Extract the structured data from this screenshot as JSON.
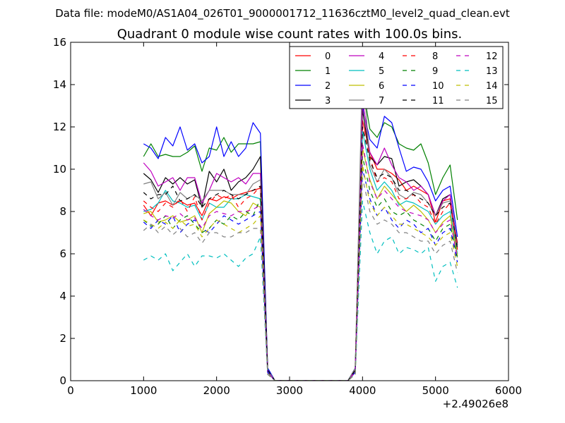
{
  "chart_data": {
    "type": "line",
    "suptitle": "Data file: modeM0/AS1A04_026T01_9000001712_11636cztM0_level2_quad_clean.evt",
    "title": "Quadrant 0 module wise count rates with 100.0s bins.",
    "xlabel": "",
    "ylabel": "",
    "x_offset_label": "+2.49026e8",
    "xlim": [
      0,
      6000
    ],
    "ylim": [
      0,
      16
    ],
    "xticks": [
      0,
      1000,
      2000,
      3000,
      4000,
      5000,
      6000
    ],
    "yticks": [
      0,
      2,
      4,
      6,
      8,
      10,
      12,
      14,
      16
    ],
    "grid": false,
    "legend_position": "top-right",
    "x": [
      1000,
      1100,
      1200,
      1300,
      1400,
      1500,
      1600,
      1700,
      1800,
      1900,
      2000,
      2100,
      2200,
      2300,
      2400,
      2500,
      2600,
      2700,
      2800,
      2900,
      3000,
      3100,
      3200,
      3300,
      3400,
      3500,
      3600,
      3700,
      3800,
      3900,
      4000,
      4100,
      4200,
      4300,
      4400,
      4500,
      4600,
      4700,
      4800,
      4900,
      5000,
      5100,
      5200,
      5300
    ],
    "series": [
      {
        "name": "0",
        "color": "#ff0000",
        "dash": "solid",
        "values": [
          8.3,
          7.8,
          8.4,
          8.5,
          8.3,
          8.5,
          8.3,
          8.4,
          7.8,
          8.6,
          8.5,
          8.7,
          8.6,
          8.8,
          8.9,
          9.0,
          9.1,
          0.5,
          0,
          0,
          0,
          0,
          0,
          0,
          0,
          0,
          0,
          0,
          0,
          0.5,
          12.3,
          10.8,
          10.0,
          10.0,
          9.8,
          9.5,
          9.0,
          9.2,
          9.0,
          8.8,
          7.5,
          8.5,
          8.6,
          6.5
        ]
      },
      {
        "name": "1",
        "color": "#008000",
        "dash": "solid",
        "values": [
          10.6,
          11.2,
          10.6,
          10.7,
          10.6,
          10.6,
          10.8,
          11.1,
          9.9,
          11.0,
          10.9,
          11.5,
          10.8,
          11.2,
          11.2,
          11.2,
          11.3,
          0.6,
          0,
          0,
          0,
          0,
          0,
          0,
          0,
          0,
          0,
          0,
          0,
          0.6,
          14.0,
          11.9,
          11.5,
          12.2,
          12.0,
          11.2,
          11.0,
          10.9,
          11.2,
          10.3,
          8.8,
          9.6,
          10.2,
          7.6
        ]
      },
      {
        "name": "2",
        "color": "#0000ff",
        "dash": "solid",
        "values": [
          11.2,
          11.0,
          10.5,
          11.5,
          11.1,
          12.0,
          10.9,
          11.2,
          10.3,
          10.6,
          12.0,
          10.6,
          11.3,
          10.6,
          11.0,
          12.2,
          11.7,
          0.6,
          0,
          0,
          0,
          0,
          0,
          0,
          0,
          0,
          0,
          0,
          0,
          0.6,
          13.0,
          11.4,
          11.0,
          12.5,
          12.2,
          11.0,
          9.9,
          10.1,
          10.0,
          9.4,
          8.5,
          9.0,
          9.2,
          6.8
        ]
      },
      {
        "name": "3",
        "color": "#000000",
        "dash": "solid",
        "values": [
          9.8,
          9.5,
          8.9,
          9.6,
          9.3,
          9.6,
          9.3,
          9.5,
          8.2,
          9.9,
          9.4,
          10.0,
          9.0,
          9.4,
          9.6,
          10.0,
          10.6,
          0.5,
          0,
          0,
          0,
          0,
          0,
          0,
          0,
          0,
          0,
          0,
          0,
          0.5,
          12.8,
          10.6,
          10.2,
          10.6,
          10.5,
          9.2,
          9.4,
          9.5,
          9.2,
          8.8,
          7.8,
          8.6,
          8.8,
          6.4
        ]
      },
      {
        "name": "4",
        "color": "#bf00bf",
        "dash": "solid",
        "values": [
          10.3,
          9.9,
          9.2,
          9.4,
          9.6,
          9.0,
          9.6,
          9.6,
          8.4,
          9.0,
          9.8,
          9.6,
          9.4,
          9.6,
          9.3,
          9.8,
          9.8,
          0.5,
          0,
          0,
          0,
          0,
          0,
          0,
          0,
          0,
          0,
          0,
          0,
          0.5,
          13.3,
          10.8,
          10.2,
          11.0,
          10.2,
          9.6,
          9.4,
          9.0,
          9.2,
          8.8,
          7.8,
          8.5,
          8.8,
          6.3
        ]
      },
      {
        "name": "5",
        "color": "#00bfbf",
        "dash": "solid",
        "values": [
          8.0,
          8.1,
          8.4,
          9.0,
          8.5,
          8.4,
          8.2,
          8.3,
          7.6,
          8.4,
          8.2,
          8.2,
          8.6,
          8.6,
          8.8,
          8.7,
          8.6,
          0.4,
          0,
          0,
          0,
          0,
          0,
          0,
          0,
          0,
          0,
          0,
          0,
          0.4,
          11.8,
          10.0,
          9.0,
          9.4,
          9.0,
          8.3,
          8.5,
          8.4,
          8.2,
          8.0,
          7.4,
          7.8,
          8.0,
          6.0
        ]
      },
      {
        "name": "6",
        "color": "#bfbf00",
        "dash": "solid",
        "values": [
          7.9,
          8.0,
          7.5,
          7.6,
          7.8,
          7.5,
          7.6,
          7.8,
          7.0,
          7.9,
          8.2,
          8.5,
          8.4,
          8.0,
          7.8,
          8.4,
          8.2,
          0.4,
          0,
          0,
          0,
          0,
          0,
          0,
          0,
          0,
          0,
          0,
          0,
          0.4,
          11.0,
          9.5,
          8.6,
          9.2,
          8.8,
          8.4,
          8.0,
          8.3,
          8.0,
          7.6,
          7.0,
          7.5,
          7.8,
          5.9
        ]
      },
      {
        "name": "7",
        "color": "#808080",
        "dash": "solid",
        "values": [
          9.3,
          9.4,
          8.6,
          8.9,
          8.3,
          8.9,
          8.6,
          8.8,
          8.5,
          9.0,
          9.0,
          9.0,
          8.8,
          8.8,
          8.8,
          9.3,
          9.5,
          0.5,
          0,
          0,
          0,
          0,
          0,
          0,
          0,
          0,
          0,
          0,
          0,
          0.6,
          15.0,
          10.2,
          9.4,
          10.0,
          9.6,
          8.8,
          8.6,
          8.9,
          8.8,
          8.4,
          7.8,
          8.4,
          8.5,
          6.3
        ]
      },
      {
        "name": "8",
        "color": "#ff0000",
        "dash": "dashed",
        "values": [
          8.5,
          8.2,
          8.0,
          8.4,
          8.2,
          8.6,
          8.0,
          8.7,
          7.6,
          8.4,
          8.8,
          8.6,
          8.8,
          8.2,
          8.6,
          8.8,
          9.2,
          0.4,
          0,
          0,
          0,
          0,
          0,
          0,
          0,
          0,
          0,
          0,
          0,
          0.4,
          12.0,
          10.6,
          9.4,
          9.6,
          9.4,
          8.6,
          8.6,
          8.8,
          8.4,
          8.2,
          7.4,
          8.0,
          8.4,
          6.2
        ]
      },
      {
        "name": "9",
        "color": "#008000",
        "dash": "dashed",
        "values": [
          7.6,
          7.3,
          7.4,
          7.8,
          7.2,
          7.6,
          7.8,
          7.4,
          7.0,
          7.2,
          7.6,
          7.4,
          7.8,
          7.6,
          8.0,
          7.8,
          8.6,
          0.4,
          0,
          0,
          0,
          0,
          0,
          0,
          0,
          0,
          0,
          0,
          0,
          0.4,
          10.6,
          9.0,
          8.2,
          8.6,
          8.0,
          7.8,
          8.0,
          7.6,
          7.4,
          7.2,
          6.6,
          7.2,
          7.4,
          5.8
        ]
      },
      {
        "name": "10",
        "color": "#0000ff",
        "dash": "dashed",
        "values": [
          7.5,
          7.2,
          7.6,
          7.4,
          7.8,
          7.0,
          7.4,
          7.6,
          7.2,
          7.0,
          7.4,
          7.8,
          7.6,
          7.4,
          7.6,
          7.8,
          8.0,
          0.4,
          0,
          0,
          0,
          0,
          0,
          0,
          0,
          0,
          0,
          0,
          0,
          0.4,
          10.0,
          8.6,
          7.8,
          8.2,
          7.6,
          7.2,
          7.6,
          7.4,
          7.0,
          7.2,
          6.4,
          7.0,
          7.2,
          5.6
        ]
      },
      {
        "name": "11",
        "color": "#000000",
        "dash": "dashed",
        "values": [
          8.9,
          8.6,
          8.8,
          8.8,
          9.2,
          8.5,
          8.6,
          8.8,
          8.2,
          8.6,
          8.8,
          9.0,
          8.8,
          8.6,
          8.8,
          9.0,
          9.2,
          0.5,
          0,
          0,
          0,
          0,
          0,
          0,
          0,
          0,
          0,
          0,
          0,
          0.5,
          12.0,
          10.4,
          9.6,
          9.8,
          9.6,
          9.0,
          9.0,
          8.8,
          8.6,
          8.4,
          7.8,
          8.2,
          8.4,
          6.2
        ]
      },
      {
        "name": "12",
        "color": "#bf00bf",
        "dash": "dashed",
        "values": [
          8.1,
          7.8,
          7.6,
          7.8,
          7.7,
          7.9,
          7.6,
          7.7,
          7.2,
          7.8,
          8.0,
          7.9,
          7.8,
          8.0,
          8.0,
          8.1,
          8.3,
          0.4,
          0,
          0,
          0,
          0,
          0,
          0,
          0,
          0,
          0,
          0,
          0,
          0.4,
          11.2,
          9.4,
          8.6,
          9.0,
          8.6,
          8.2,
          8.0,
          7.9,
          7.8,
          7.6,
          7.0,
          7.4,
          7.6,
          5.8
        ]
      },
      {
        "name": "13",
        "color": "#00bfbf",
        "dash": "dashed",
        "values": [
          5.7,
          5.9,
          5.7,
          6.0,
          5.2,
          5.6,
          6.0,
          5.4,
          5.9,
          5.9,
          5.8,
          6.0,
          5.7,
          5.4,
          5.8,
          6.0,
          6.8,
          0.3,
          0,
          0,
          0,
          0,
          0,
          0,
          0,
          0,
          0,
          0,
          0,
          0.3,
          8.5,
          7.0,
          6.0,
          6.6,
          6.8,
          6.0,
          6.3,
          6.2,
          6.0,
          6.3,
          4.7,
          5.4,
          5.6,
          4.4
        ]
      },
      {
        "name": "14",
        "color": "#bfbf00",
        "dash": "dashed",
        "values": [
          7.6,
          7.4,
          7.2,
          7.5,
          7.2,
          7.6,
          7.3,
          7.4,
          6.8,
          7.2,
          7.6,
          7.4,
          7.2,
          7.0,
          7.2,
          7.4,
          7.8,
          0.3,
          0,
          0,
          0,
          0,
          0,
          0,
          0,
          0,
          0,
          0,
          0,
          0.3,
          10.2,
          8.4,
          7.8,
          8.2,
          7.8,
          7.4,
          7.4,
          7.2,
          7.0,
          6.8,
          6.4,
          6.8,
          7.0,
          5.4
        ]
      },
      {
        "name": "15",
        "color": "#808080",
        "dash": "dashed",
        "values": [
          7.1,
          7.4,
          7.0,
          7.3,
          6.9,
          7.2,
          6.8,
          7.0,
          6.5,
          7.0,
          7.0,
          6.8,
          6.8,
          7.0,
          7.0,
          7.2,
          7.2,
          0.3,
          0,
          0,
          0,
          0,
          0,
          0,
          0,
          0,
          0,
          0,
          0,
          0.3,
          9.6,
          8.0,
          7.4,
          7.6,
          7.4,
          7.0,
          7.0,
          6.8,
          6.6,
          6.6,
          6.0,
          6.4,
          6.6,
          5.1
        ]
      }
    ]
  }
}
